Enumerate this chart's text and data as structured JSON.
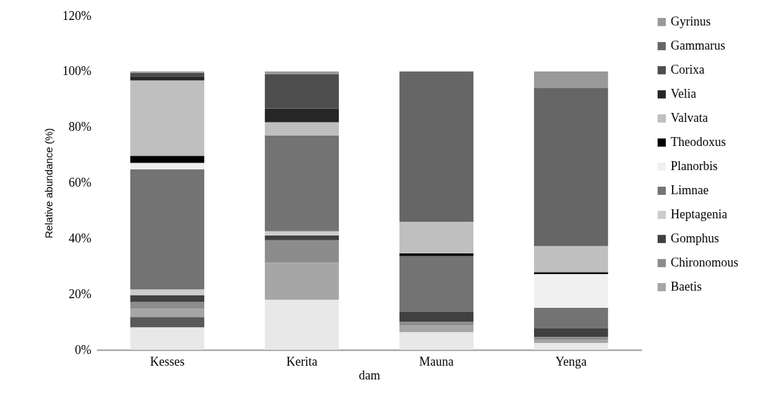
{
  "chart_data": {
    "type": "bar",
    "stacked": true,
    "xlabel": "dam",
    "ylabel": "Relative abundance (%)",
    "categories": [
      "Kesses",
      "Kerita",
      "Mauna",
      "Yenga"
    ],
    "ylim": [
      0,
      120
    ],
    "yticks": [
      {
        "value": 0,
        "label": "0%"
      },
      {
        "value": 20,
        "label": "20%"
      },
      {
        "value": 40,
        "label": "40%"
      },
      {
        "value": 60,
        "label": "60%"
      },
      {
        "value": 80,
        "label": "80%"
      },
      {
        "value": 100,
        "label": "100%"
      },
      {
        "value": 120,
        "label": "120%"
      }
    ],
    "grid": false,
    "legend": "right",
    "series": [
      {
        "color": "#e8e8e8",
        "values": [
          8.1,
          18.0,
          6.4,
          2.5
        ]
      },
      {
        "color": "#595959",
        "values": [
          3.7,
          0,
          0,
          0
        ]
      },
      {
        "name": "Baetis",
        "color": "#a6a6a6",
        "values": [
          3.0,
          13.3,
          2.5,
          1.2
        ]
      },
      {
        "name": "Chironomous",
        "color": "#8c8c8c",
        "values": [
          2.4,
          8.1,
          1.2,
          1.0
        ]
      },
      {
        "name": "Gomphus",
        "color": "#404040",
        "values": [
          2.5,
          1.7,
          3.5,
          3.0
        ]
      },
      {
        "name": "Heptagenia",
        "color": "#cccccc",
        "values": [
          2.0,
          1.5,
          0,
          0
        ]
      },
      {
        "name": "Limnae",
        "color": "#737373",
        "values": [
          43.1,
          34.5,
          20.1,
          7.4
        ]
      },
      {
        "name": "Planorbis",
        "color": "#f0f0f0",
        "values": [
          2.4,
          0,
          0,
          12.1
        ]
      },
      {
        "name": "Theodoxus",
        "color": "#000000",
        "values": [
          2.5,
          0,
          1.0,
          0.7
        ]
      },
      {
        "name": "Valvata",
        "color": "#bfbfbf",
        "values": [
          27.1,
          4.7,
          11.3,
          9.4
        ]
      },
      {
        "name": "Velia",
        "color": "#262626",
        "values": [
          1.2,
          4.9,
          0,
          0
        ]
      },
      {
        "name": "Corixa",
        "color": "#4d4d4d",
        "values": [
          1.5,
          12.3,
          0,
          0
        ]
      },
      {
        "name": "Gammarus",
        "color": "#666666",
        "values": [
          0,
          0,
          54.0,
          56.7
        ]
      },
      {
        "name": "Gyrinus",
        "color": "#999999",
        "values": [
          0.5,
          1.0,
          0,
          6.0
        ]
      }
    ]
  }
}
